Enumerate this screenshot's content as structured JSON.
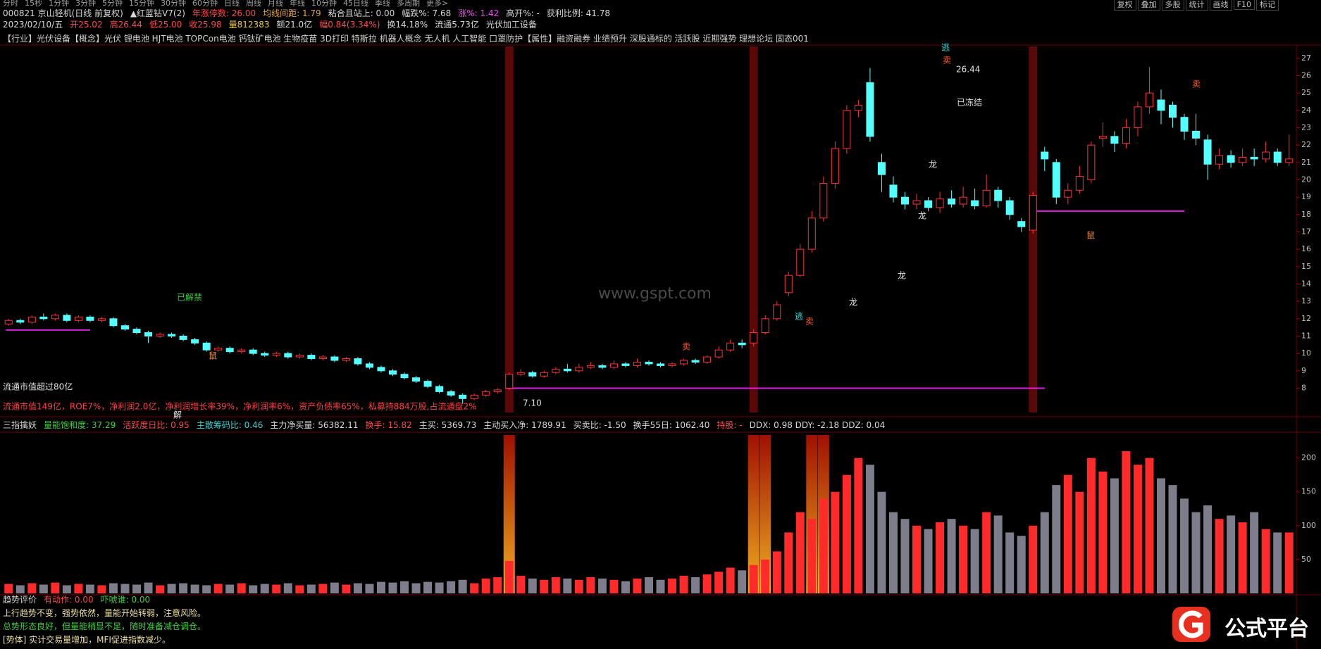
{
  "toolbar": [
    "分时",
    "15秒",
    "1分钟",
    "3分钟",
    "5分钟",
    "15分钟",
    "30分钟",
    "60分钟",
    "日线",
    "周线",
    "月线",
    "年线",
    "10分钟",
    "45日线",
    "季线",
    "多周期",
    "更多>"
  ],
  "toolbar_right": [
    "复权",
    "叠加",
    "多股",
    "统计",
    "画线",
    "F10",
    "标记"
  ],
  "header_line1": [
    {
      "text": "000821 京山轻机(日线 前复权)",
      "color": "#d8d8d8"
    },
    {
      "text": "▲红蓝钻V7(2)",
      "color": "#d8d8d8"
    },
    {
      "text": "年涨停数: 26.00",
      "color": "#ff4848"
    },
    {
      "text": "均线间距: 1.79",
      "color": "#e8a040"
    },
    {
      "text": "粘合且站上: 0.00",
      "color": "#d8d8d8"
    },
    {
      "text": "幅跌%: 7.68",
      "color": "#d8d8d8"
    },
    {
      "text": "涨%: 1.42",
      "color": "#ff40ff"
    },
    {
      "text": "高开%: -",
      "color": "#d8d8d8"
    },
    {
      "text": "获利比例: 41.78",
      "color": "#d8d8d8"
    }
  ],
  "header_line2": [
    {
      "text": "2023/02/10/五",
      "color": "#d8d8d8"
    },
    {
      "text": "开25.02",
      "color": "#ff4848"
    },
    {
      "text": "高26.44",
      "color": "#ff4848"
    },
    {
      "text": "低25.00",
      "color": "#ff4848"
    },
    {
      "text": "收25.98",
      "color": "#ff4848"
    },
    {
      "text": "量812383",
      "color": "#e8c84a"
    },
    {
      "text": "额21.0亿",
      "color": "#d8d8d8"
    },
    {
      "text": "幅0.84(3.34%)",
      "color": "#ff4848"
    },
    {
      "text": "换14.18%",
      "color": "#d8d8d8"
    },
    {
      "text": "流通5.73亿",
      "color": "#d8d8d8"
    },
    {
      "text": "光伏加工设备",
      "color": "#d8d8d8"
    }
  ],
  "concepts": "【行业】光伏设备【概念】光伏 锂电池 HJT电池 TOPCon电池 钙钛矿电池 生物疫苗 3D打印 特斯拉 机器人概念 无人机 人工智能 口罩防护【属性】融资融券 业绩预升 深股通标的 活跃股 近期强势 理想论坛 固态001",
  "indicator_line": [
    {
      "text": "三指擒妖",
      "color": "#d8d8d8"
    },
    {
      "text": "量能饱和度: 37.29",
      "color": "#40d040"
    },
    {
      "text": "活跃度日比: 0.95",
      "color": "#ff4848"
    },
    {
      "text": "主散筹码比: 0.46",
      "color": "#40d0d0"
    },
    {
      "text": "主力净买量: 56382.11",
      "color": "#d8d8d8"
    },
    {
      "text": "换手: 15.82",
      "color": "#ff4848"
    },
    {
      "text": "主买: 5369.73",
      "color": "#d8d8d8"
    },
    {
      "text": "主动买入净: 1789.91",
      "color": "#d8d8d8"
    },
    {
      "text": "买卖比: -1.50",
      "color": "#d8d8d8"
    },
    {
      "text": "换手55日: 1062.40",
      "color": "#d8d8d8"
    },
    {
      "text": "持股: -",
      "color": "#ff4848"
    },
    {
      "text": "DDX: 0.98 DDY: -2.18 DDZ: 0.04",
      "color": "#d8d8d8"
    }
  ],
  "trend_header": [
    {
      "text": "趋势评价",
      "color": "#d8d8d8"
    },
    {
      "text": "有动作: 0.00",
      "color": "#ff4848"
    },
    {
      "text": "吓唬谁: 0.00",
      "color": "#40d040"
    }
  ],
  "trend_lines": [
    {
      "text": "上行趋势不变，强势依然，量能开始转弱，注意风险。",
      "color": "#f0e0a0"
    },
    {
      "text": "总势形态良好，但量能稍显不足，随时准备减仓调仓。",
      "color": "#40d040"
    },
    {
      "text": "[势体] 实计交易量增加，MFI促进指数减少。",
      "color": "#f0e0a0"
    }
  ],
  "watermark": "www.gspt.com",
  "logo": "公式平台",
  "chart_data": [
    {
      "type": "candlestick",
      "x": [
        null,
        null,
        null,
        null,
        null,
        null,
        null,
        null,
        null,
        null,
        null,
        null,
        null,
        null,
        null,
        null,
        null,
        null,
        null,
        null,
        null,
        null,
        null,
        null,
        null,
        null,
        null,
        null,
        null,
        null,
        null,
        null,
        null,
        null,
        null,
        null,
        null,
        null,
        null,
        null,
        null,
        null,
        null,
        null,
        null,
        null,
        null,
        null,
        null,
        null,
        null,
        null,
        null,
        null,
        null,
        null,
        null,
        null,
        null,
        null,
        null,
        null,
        null,
        null,
        null,
        null,
        null,
        null,
        null,
        null,
        null,
        null,
        null,
        null,
        null,
        null,
        null,
        null,
        null,
        null,
        null,
        null,
        null,
        null,
        null,
        null,
        null,
        null,
        null,
        null,
        null,
        null,
        null,
        null,
        null,
        null,
        null,
        null,
        null,
        null,
        null,
        null,
        null,
        null,
        null,
        null,
        null,
        null,
        null,
        null,
        null
      ],
      "open": [
        11.7,
        11.9,
        11.8,
        12.1,
        12.0,
        12.2,
        11.9,
        12.1,
        11.9,
        12.0,
        11.6,
        11.4,
        11.2,
        11.0,
        11.1,
        11.0,
        10.8,
        10.6,
        10.2,
        10.3,
        10.1,
        10.2,
        10.0,
        9.9,
        10.0,
        9.8,
        9.9,
        9.7,
        9.8,
        9.6,
        9.7,
        9.4,
        9.2,
        9.0,
        8.8,
        8.6,
        8.4,
        8.1,
        7.8,
        7.6,
        7.4,
        7.6,
        7.8,
        8.0,
        8.8,
        8.9,
        8.7,
        8.9,
        9.1,
        9.0,
        9.2,
        9.3,
        9.2,
        9.4,
        9.3,
        9.5,
        9.4,
        9.3,
        9.4,
        9.6,
        9.5,
        9.8,
        10.2,
        10.6,
        10.6,
        11.2,
        12.0,
        13.5,
        14.5,
        16.0,
        17.8,
        19.8,
        21.8,
        24.0,
        25.6,
        21.0,
        19.7,
        19.0,
        18.6,
        18.8,
        18.4,
        18.9,
        18.6,
        18.8,
        18.5,
        19.4,
        18.8,
        17.6,
        17.1,
        21.6,
        21.0,
        19.0,
        19.4,
        20.0,
        22.4,
        22.5,
        22.1,
        23.0,
        24.2,
        24.6,
        24.3,
        23.6,
        22.8,
        22.3,
        20.9,
        21.4,
        21.0,
        21.3,
        21.2,
        21.6,
        21.0
      ],
      "high": [
        12.0,
        12.0,
        12.2,
        12.3,
        12.3,
        12.3,
        12.2,
        12.2,
        12.1,
        12.1,
        11.7,
        11.5,
        11.3,
        11.2,
        11.2,
        11.1,
        10.9,
        10.7,
        10.4,
        10.4,
        10.3,
        10.3,
        10.1,
        10.1,
        10.1,
        10.0,
        10.0,
        9.9,
        9.9,
        9.8,
        9.8,
        9.5,
        9.3,
        9.1,
        8.9,
        8.7,
        8.5,
        8.2,
        7.9,
        7.7,
        7.7,
        7.9,
        8.0,
        8.9,
        9.1,
        9.0,
        9.0,
        9.2,
        9.4,
        9.4,
        9.5,
        9.4,
        9.6,
        9.5,
        9.7,
        9.6,
        9.5,
        9.5,
        9.7,
        9.7,
        9.9,
        10.4,
        10.8,
        10.8,
        11.4,
        12.2,
        13.0,
        14.7,
        16.3,
        18.2,
        20.2,
        22.2,
        24.3,
        24.6,
        26.44,
        21.5,
        20.2,
        19.3,
        19.2,
        19.0,
        19.3,
        19.4,
        19.6,
        19.5,
        20.3,
        19.6,
        19.0,
        17.8,
        19.3,
        21.9,
        21.2,
        19.8,
        20.8,
        22.2,
        23.3,
        22.8,
        23.5,
        24.5,
        26.5,
        25.2,
        24.5,
        23.8,
        23.8,
        22.6,
        21.8,
        21.7,
        21.8,
        21.8,
        22.2,
        21.8,
        22.6
      ],
      "low": [
        11.6,
        11.7,
        11.7,
        11.9,
        11.9,
        11.8,
        11.8,
        11.8,
        11.8,
        11.5,
        11.3,
        11.1,
        10.6,
        10.9,
        10.9,
        10.7,
        10.5,
        10.1,
        10.1,
        10.0,
        10.0,
        9.9,
        9.8,
        9.8,
        9.7,
        9.7,
        9.6,
        9.6,
        9.5,
        9.5,
        9.3,
        9.1,
        8.9,
        8.7,
        8.5,
        8.3,
        8.0,
        7.7,
        7.5,
        7.1,
        7.3,
        7.5,
        7.7,
        7.9,
        8.7,
        8.6,
        8.6,
        8.8,
        8.9,
        8.9,
        9.1,
        9.1,
        9.1,
        9.2,
        9.2,
        9.3,
        9.2,
        9.2,
        9.3,
        9.4,
        9.4,
        9.7,
        10.1,
        10.3,
        10.4,
        11.1,
        11.9,
        13.3,
        14.4,
        15.8,
        17.6,
        19.5,
        21.5,
        23.6,
        22.2,
        19.3,
        18.7,
        18.3,
        18.3,
        18.2,
        18.1,
        18.4,
        18.4,
        18.3,
        18.4,
        18.4,
        17.7,
        17.0,
        16.9,
        20.5,
        18.6,
        18.6,
        19.2,
        19.8,
        21.9,
        21.6,
        21.8,
        22.5,
        23.8,
        23.2,
        23.0,
        22.3,
        22.0,
        20.0,
        20.6,
        20.7,
        20.8,
        20.8,
        21.0,
        20.8,
        20.8
      ],
      "close": [
        11.9,
        11.8,
        12.1,
        12.0,
        12.2,
        11.9,
        12.1,
        11.9,
        12.0,
        11.6,
        11.4,
        11.2,
        11.0,
        11.1,
        11.0,
        10.8,
        10.6,
        10.2,
        10.3,
        10.1,
        10.2,
        10.0,
        9.9,
        10.0,
        9.8,
        9.9,
        9.7,
        9.8,
        9.6,
        9.7,
        9.4,
        9.2,
        9.0,
        8.8,
        8.6,
        8.4,
        8.1,
        7.8,
        7.6,
        7.4,
        7.6,
        7.8,
        7.9,
        8.8,
        8.9,
        8.7,
        8.9,
        9.1,
        9.0,
        9.2,
        9.3,
        9.2,
        9.4,
        9.3,
        9.5,
        9.4,
        9.3,
        9.4,
        9.6,
        9.5,
        9.8,
        10.2,
        10.6,
        10.5,
        11.2,
        12.0,
        12.8,
        14.5,
        16.0,
        17.8,
        19.8,
        21.8,
        24.0,
        24.3,
        22.5,
        20.3,
        19.0,
        18.6,
        18.8,
        18.4,
        18.9,
        18.6,
        19.0,
        18.5,
        19.4,
        18.8,
        18.0,
        17.3,
        19.1,
        21.2,
        19.0,
        19.4,
        20.2,
        22.0,
        22.5,
        22.1,
        23.0,
        24.2,
        25.0,
        24.0,
        23.6,
        22.8,
        22.4,
        20.9,
        21.4,
        21.0,
        21.3,
        21.2,
        21.6,
        21.0,
        21.2
      ],
      "ylim": [
        6.6,
        27.6
      ],
      "yticks": [
        8,
        9,
        10,
        11,
        12,
        13,
        14,
        15,
        16,
        17,
        18,
        19,
        20,
        21,
        22,
        23,
        24,
        25,
        26,
        27
      ],
      "up_color": "#ff3232",
      "down_color": "#54ffff",
      "level_lines": [
        11.35,
        8.0,
        18.2
      ],
      "level_color": "#e020e0",
      "annotations": [
        {
          "text": "已解禁",
          "color": "#3ec83e"
        },
        {
          "text": "流通市值超过80亿",
          "color": "#e0e0e0"
        },
        {
          "text": "流通市值149亿，ROE7%，净利润2.0亿，净利润增长率39%，净利润率6%，资产负债率65%，私募持884万股,占流通盘2%",
          "color": "#ff4040"
        },
        {
          "text": "解",
          "color": "#e0e0e0"
        },
        {
          "text": "7.10",
          "color": "#e0e0e0"
        },
        {
          "text": "逃",
          "color": "#40d0d0"
        },
        {
          "text": "卖",
          "color": "#ff6030"
        },
        {
          "text": "26.44",
          "color": "#e0e0e0"
        },
        {
          "text": "已冻结",
          "color": "#e0e0e0"
        },
        {
          "text": "龙",
          "color": "#e0e0e0"
        },
        {
          "text": "龙",
          "color": "#e0e0e0"
        },
        {
          "text": "龙",
          "color": "#e0e0e0"
        },
        {
          "text": "龙",
          "color": "#e0e0e0"
        },
        {
          "text": "卖",
          "color": "#ff6030"
        },
        {
          "text": "卖",
          "color": "#ff6030"
        },
        {
          "text": "卖",
          "color": "#ff6030"
        },
        {
          "text": "鼠",
          "color": "#ff9040"
        },
        {
          "text": "鼠",
          "color": "#ff9040"
        },
        {
          "text": "逃",
          "color": "#40d0d0"
        }
      ]
    },
    {
      "type": "bar",
      "values": [
        14,
        12,
        15,
        13,
        16,
        12,
        14,
        13,
        12,
        15,
        14,
        13,
        16,
        12,
        14,
        15,
        13,
        12,
        14,
        13,
        15,
        12,
        14,
        13,
        15,
        12,
        13,
        14,
        16,
        13,
        15,
        14,
        17,
        16,
        18,
        15,
        17,
        16,
        18,
        20,
        15,
        22,
        24,
        48,
        26,
        22,
        20,
        24,
        22,
        20,
        24,
        22,
        20,
        18,
        22,
        24,
        20,
        22,
        26,
        24,
        28,
        32,
        38,
        34,
        42,
        50,
        62,
        90,
        120,
        110,
        140,
        150,
        175,
        200,
        190,
        150,
        120,
        110,
        100,
        95,
        105,
        110,
        100,
        95,
        120,
        115,
        90,
        85,
        100,
        120,
        160,
        175,
        150,
        200,
        180,
        170,
        210,
        190,
        200,
        170,
        160,
        140,
        120,
        130,
        110,
        115,
        105,
        120,
        95,
        90,
        90
      ],
      "ylim": [
        0,
        236
      ],
      "yticks": [
        50,
        100,
        150,
        200
      ],
      "up_color": "#ff2a2a",
      "down_color": "#7d7d8c"
    }
  ]
}
